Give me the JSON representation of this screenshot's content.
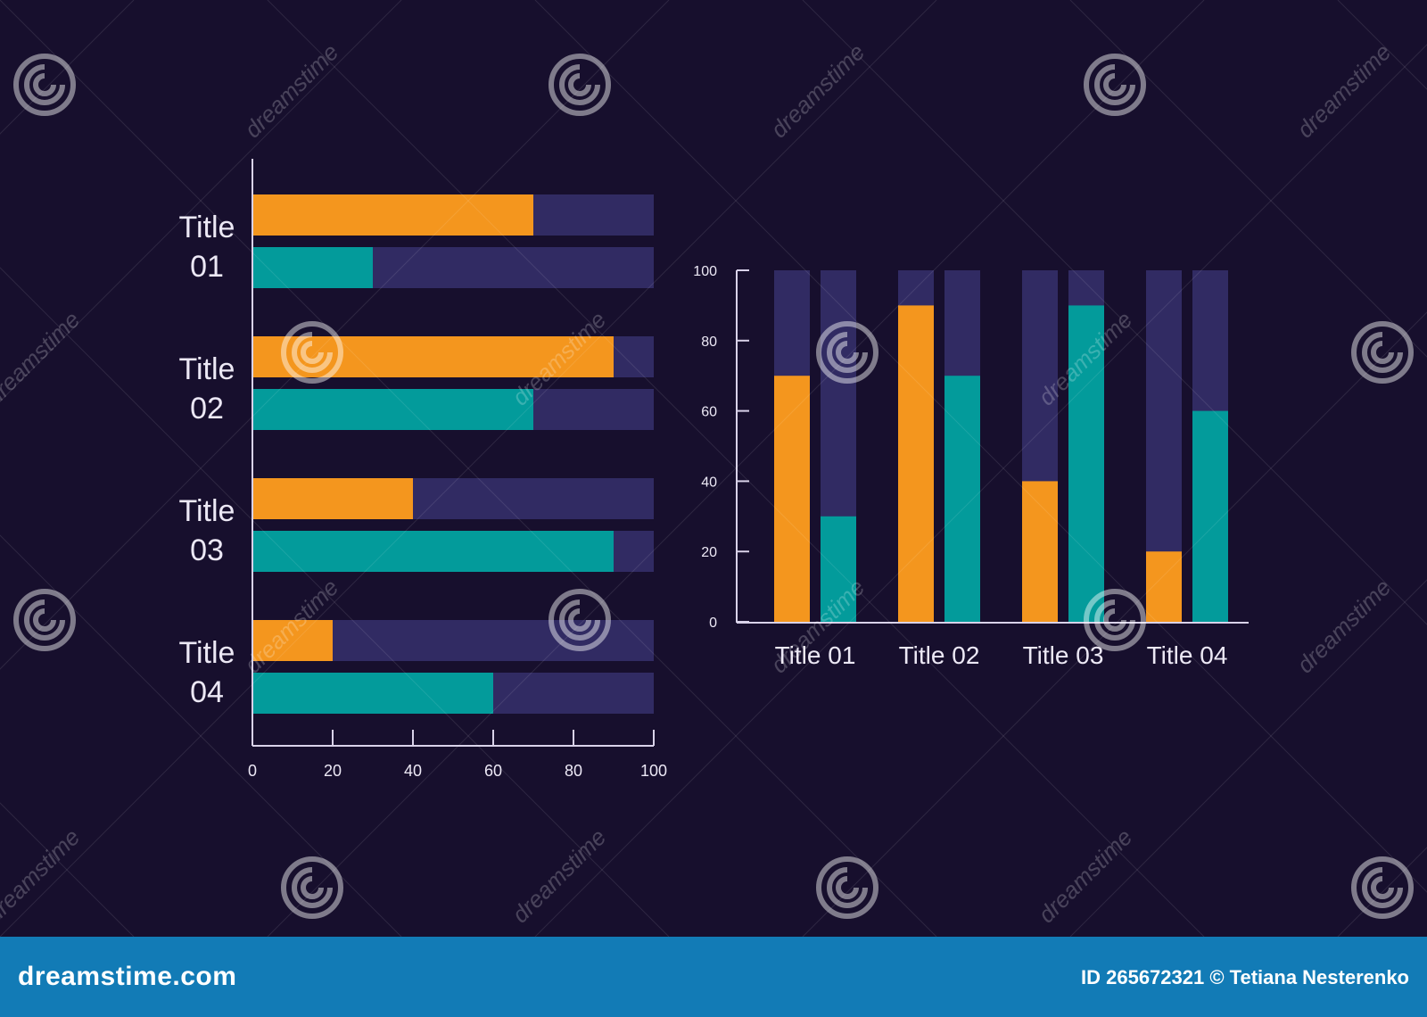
{
  "chart_data": [
    {
      "type": "bar",
      "orientation": "horizontal",
      "categories": [
        "Title 01",
        "Title 02",
        "Title 03",
        "Title 04"
      ],
      "series": [
        {
          "color": "#f4961e",
          "values": [
            70,
            90,
            40,
            20
          ]
        },
        {
          "color": "#039b9b",
          "values": [
            30,
            70,
            90,
            60
          ]
        }
      ],
      "track_color": "#312b63",
      "xlim": [
        0,
        100
      ],
      "xticks": [
        0,
        20,
        40,
        60,
        80,
        100
      ],
      "xtick_labels": [
        "0",
        "20",
        "40",
        "60",
        "80",
        "100"
      ],
      "grid": false,
      "legend": "none"
    },
    {
      "type": "bar",
      "orientation": "vertical",
      "categories": [
        "Title 01",
        "Title 02",
        "Title 03",
        "Title 04"
      ],
      "series": [
        {
          "color": "#f4961e",
          "values": [
            70,
            90,
            40,
            20
          ]
        },
        {
          "color": "#039b9b",
          "values": [
            30,
            70,
            90,
            60
          ]
        }
      ],
      "track_color": "#312b63",
      "ylim": [
        0,
        100
      ],
      "yticks": [
        0,
        20,
        40,
        60,
        80,
        100
      ],
      "ytick_labels": [
        "0",
        "20",
        "40",
        "60",
        "80",
        "100"
      ],
      "grid": false,
      "legend": "none"
    }
  ],
  "colors": {
    "background": "#170f2d",
    "axis": "#d9d2e9",
    "label": "#ece8f5",
    "footer": "#127bb6"
  },
  "watermark": {
    "text": "dreamstime",
    "icon": "swirl-logo-icon"
  },
  "footer": {
    "brand": "dreamstime.com",
    "credit": "ID 265672321 © Tetiana Nesterenko"
  }
}
